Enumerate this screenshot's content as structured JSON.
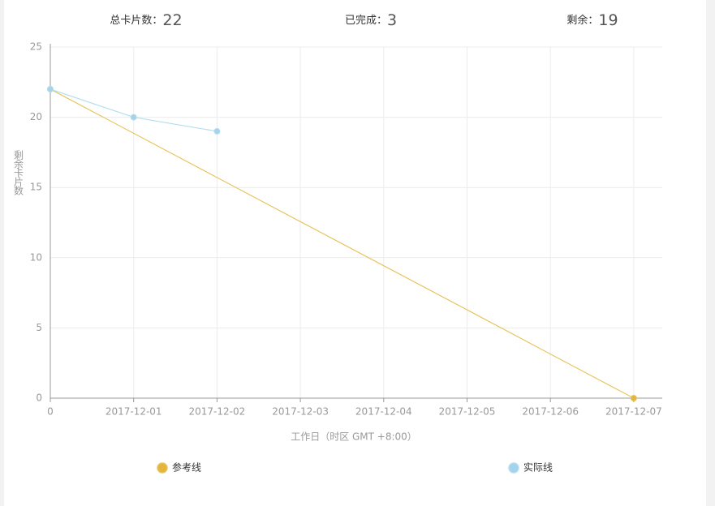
{
  "stats": [
    {
      "label": "总卡片数：",
      "value": 22
    },
    {
      "label": "已完成：",
      "value": 3
    },
    {
      "label": "剩余：",
      "value": 19
    }
  ],
  "chart_data": {
    "type": "line",
    "categories": [
      "0",
      "2017-12-01",
      "2017-12-02",
      "2017-12-03",
      "2017-12-04",
      "2017-12-05",
      "2017-12-06",
      "2017-12-07"
    ],
    "series": [
      {
        "name": "参考线",
        "color": "#e8c462",
        "marker_color": "#e3b53a",
        "values": [
          22,
          18.86,
          15.71,
          12.57,
          9.43,
          6.29,
          3.14,
          0
        ]
      },
      {
        "name": "实际线",
        "color": "#b3ddf0",
        "marker_color": "#a6d3ec",
        "values": [
          22,
          20,
          19,
          null,
          null,
          null,
          null,
          null
        ]
      }
    ],
    "ylim": [
      0,
      25
    ],
    "yticks": [
      0,
      5,
      10,
      15,
      20,
      25
    ],
    "ylabel": "剩余卡片数",
    "xlabel": "工作日（时区 GMT +8:00）",
    "grid": true
  }
}
